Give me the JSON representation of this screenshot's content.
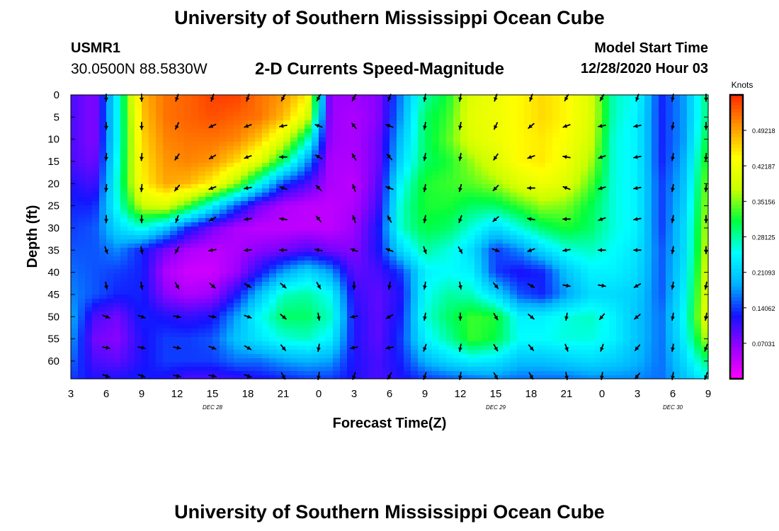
{
  "page": {
    "title": "University of Southern Mississippi Ocean Cube",
    "footer_title": "University of Southern Mississippi Ocean Cube",
    "station_id": "USMR1",
    "station_coords": "30.0500N 88.5830W",
    "model_label": "Model Start Time",
    "model_time": "12/28/2020 Hour 03"
  },
  "chart_data": {
    "type": "heatmap",
    "title": "2-D Currents Speed-Magnitude",
    "xlabel": "Forecast Time(Z)",
    "ylabel": "Depth (ft)",
    "x_tick_labels": [
      "3",
      "6",
      "9",
      "12",
      "15",
      "18",
      "21",
      "0",
      "3",
      "6",
      "9",
      "12",
      "15",
      "18",
      "21",
      "0",
      "3",
      "6",
      "9"
    ],
    "x_range_hours": [
      0,
      54
    ],
    "date_labels": [
      {
        "text": "DEC 28",
        "at_hour": 12
      },
      {
        "text": "DEC 29",
        "at_hour": 36
      },
      {
        "text": "DEC 30",
        "at_hour": 51
      }
    ],
    "y_ticks": [
      0,
      5,
      10,
      15,
      20,
      25,
      30,
      35,
      40,
      45,
      50,
      55,
      60
    ],
    "ylim": [
      0,
      64
    ],
    "y_inverted": true,
    "colorbar": {
      "unit": "Knots",
      "tick_labels": [
        "0.49218",
        "0.42187",
        "0.35156",
        "0.28125",
        "0.21093",
        "0.14062",
        "0.07031"
      ],
      "tick_values": [
        0.49218,
        0.42187,
        0.35156,
        0.28125,
        0.21093,
        0.14062,
        0.07031
      ],
      "range": [
        0,
        0.5625
      ],
      "colors": [
        "#ff00ff",
        "#9900ff",
        "#1414ff",
        "#00b4ff",
        "#00ffff",
        "#00ff3c",
        "#c8ff00",
        "#ffff00",
        "#ff9600",
        "#ff2800"
      ]
    },
    "speed_grid": {
      "times": [
        0,
        2,
        4,
        6,
        8,
        10,
        12,
        14,
        16,
        18,
        20,
        22,
        24,
        26,
        28,
        30,
        32,
        34,
        36,
        38,
        40,
        42,
        44,
        46,
        48,
        50,
        52,
        54
      ],
      "depths": [
        0,
        5,
        10,
        15,
        20,
        25,
        30,
        35,
        40,
        45,
        50,
        55,
        60,
        64
      ],
      "values": [
        [
          0.1,
          0.07,
          0.25,
          0.48,
          0.52,
          0.53,
          0.55,
          0.55,
          0.52,
          0.5,
          0.45,
          0.06,
          0.06,
          0.07,
          0.17,
          0.28,
          0.32,
          0.4,
          0.42,
          0.44,
          0.46,
          0.44,
          0.4,
          0.27,
          0.25,
          0.13,
          0.18,
          0.3
        ],
        [
          0.1,
          0.07,
          0.25,
          0.47,
          0.52,
          0.53,
          0.54,
          0.53,
          0.52,
          0.48,
          0.4,
          0.06,
          0.05,
          0.07,
          0.18,
          0.3,
          0.33,
          0.41,
          0.42,
          0.44,
          0.46,
          0.44,
          0.4,
          0.27,
          0.24,
          0.13,
          0.18,
          0.3
        ],
        [
          0.1,
          0.07,
          0.25,
          0.46,
          0.51,
          0.52,
          0.52,
          0.51,
          0.47,
          0.4,
          0.28,
          0.06,
          0.05,
          0.08,
          0.2,
          0.3,
          0.34,
          0.4,
          0.42,
          0.44,
          0.45,
          0.43,
          0.39,
          0.26,
          0.24,
          0.13,
          0.18,
          0.32
        ],
        [
          0.1,
          0.08,
          0.26,
          0.45,
          0.5,
          0.51,
          0.5,
          0.46,
          0.4,
          0.3,
          0.18,
          0.05,
          0.05,
          0.08,
          0.22,
          0.3,
          0.32,
          0.36,
          0.4,
          0.44,
          0.45,
          0.42,
          0.37,
          0.26,
          0.24,
          0.13,
          0.19,
          0.34
        ],
        [
          0.12,
          0.1,
          0.27,
          0.44,
          0.49,
          0.48,
          0.44,
          0.36,
          0.25,
          0.14,
          0.1,
          0.05,
          0.04,
          0.09,
          0.25,
          0.32,
          0.33,
          0.34,
          0.36,
          0.4,
          0.42,
          0.4,
          0.34,
          0.26,
          0.24,
          0.14,
          0.2,
          0.36
        ],
        [
          0.13,
          0.13,
          0.26,
          0.38,
          0.4,
          0.33,
          0.24,
          0.15,
          0.08,
          0.05,
          0.04,
          0.04,
          0.05,
          0.1,
          0.27,
          0.32,
          0.32,
          0.3,
          0.3,
          0.33,
          0.36,
          0.35,
          0.31,
          0.26,
          0.24,
          0.14,
          0.21,
          0.37
        ],
        [
          0.14,
          0.15,
          0.22,
          0.26,
          0.21,
          0.13,
          0.08,
          0.05,
          0.04,
          0.04,
          0.04,
          0.04,
          0.06,
          0.12,
          0.27,
          0.31,
          0.3,
          0.26,
          0.22,
          0.26,
          0.3,
          0.32,
          0.3,
          0.26,
          0.24,
          0.14,
          0.22,
          0.38
        ],
        [
          0.15,
          0.15,
          0.17,
          0.13,
          0.08,
          0.05,
          0.04,
          0.05,
          0.07,
          0.08,
          0.1,
          0.08,
          0.07,
          0.12,
          0.22,
          0.28,
          0.26,
          0.22,
          0.14,
          0.17,
          0.22,
          0.26,
          0.27,
          0.25,
          0.23,
          0.15,
          0.22,
          0.39
        ],
        [
          0.16,
          0.15,
          0.14,
          0.13,
          0.05,
          0.03,
          0.03,
          0.06,
          0.12,
          0.18,
          0.22,
          0.18,
          0.09,
          0.1,
          0.14,
          0.24,
          0.25,
          0.24,
          0.14,
          0.12,
          0.13,
          0.2,
          0.24,
          0.24,
          0.22,
          0.15,
          0.23,
          0.4
        ],
        [
          0.17,
          0.15,
          0.13,
          0.13,
          0.07,
          0.05,
          0.06,
          0.12,
          0.2,
          0.27,
          0.28,
          0.25,
          0.11,
          0.09,
          0.12,
          0.25,
          0.28,
          0.27,
          0.22,
          0.15,
          0.13,
          0.18,
          0.22,
          0.22,
          0.21,
          0.15,
          0.24,
          0.41
        ],
        [
          0.19,
          0.1,
          0.08,
          0.13,
          0.12,
          0.11,
          0.12,
          0.18,
          0.25,
          0.3,
          0.3,
          0.27,
          0.12,
          0.09,
          0.13,
          0.26,
          0.3,
          0.33,
          0.32,
          0.24,
          0.24,
          0.26,
          0.27,
          0.24,
          0.2,
          0.16,
          0.25,
          0.42
        ],
        [
          0.18,
          0.08,
          0.07,
          0.12,
          0.14,
          0.14,
          0.15,
          0.2,
          0.23,
          0.26,
          0.27,
          0.24,
          0.12,
          0.09,
          0.14,
          0.24,
          0.28,
          0.33,
          0.31,
          0.25,
          0.25,
          0.26,
          0.26,
          0.24,
          0.2,
          0.16,
          0.24,
          0.38
        ],
        [
          0.16,
          0.1,
          0.09,
          0.12,
          0.14,
          0.14,
          0.14,
          0.16,
          0.16,
          0.18,
          0.19,
          0.18,
          0.12,
          0.1,
          0.13,
          0.19,
          0.22,
          0.24,
          0.23,
          0.2,
          0.2,
          0.21,
          0.22,
          0.21,
          0.19,
          0.16,
          0.22,
          0.3
        ],
        [
          0.14,
          0.12,
          0.12,
          0.13,
          0.12,
          0.1,
          0.1,
          0.11,
          0.12,
          0.13,
          0.14,
          0.14,
          0.12,
          0.1,
          0.12,
          0.14,
          0.15,
          0.16,
          0.17,
          0.16,
          0.16,
          0.16,
          0.17,
          0.17,
          0.17,
          0.16,
          0.2,
          0.25
        ]
      ]
    },
    "vectors": {
      "times": [
        3,
        6,
        9,
        12,
        15,
        18,
        21,
        24,
        27,
        30,
        33,
        36,
        39,
        42,
        45,
        48,
        51,
        54
      ],
      "depths": [
        0,
        7,
        14,
        21,
        28,
        35,
        43,
        50,
        57,
        64
      ],
      "angles_deg": [
        [
          90,
          90,
          110,
          110,
          110,
          120,
          120,
          120,
          110,
          100,
          100,
          110,
          110,
          120,
          120,
          110,
          100,
          90
        ],
        [
          90,
          90,
          115,
          155,
          160,
          170,
          200,
          230,
          200,
          100,
          100,
          115,
          140,
          160,
          170,
          170,
          100,
          90
        ],
        [
          95,
          95,
          125,
          150,
          160,
          180,
          210,
          240,
          230,
          100,
          100,
          125,
          160,
          190,
          160,
          170,
          100,
          95
        ],
        [
          95,
          95,
          130,
          160,
          170,
          200,
          225,
          250,
          200,
          100,
          105,
          135,
          180,
          200,
          165,
          170,
          100,
          95
        ],
        [
          90,
          90,
          110,
          150,
          170,
          190,
          230,
          250,
          240,
          100,
          110,
          140,
          190,
          180,
          160,
          170,
          100,
          90
        ],
        [
          70,
          80,
          120,
          170,
          175,
          180,
          190,
          200,
          200,
          70,
          60,
          20,
          160,
          170,
          180,
          180,
          100,
          90
        ],
        [
          80,
          80,
          60,
          40,
          30,
          40,
          60,
          90,
          100,
          100,
          80,
          50,
          30,
          10,
          10,
          150,
          100,
          100
        ],
        [
          20,
          20,
          10,
          10,
          20,
          40,
          80,
          170,
          150,
          100,
          90,
          60,
          40,
          100,
          130,
          140,
          100,
          100
        ],
        [
          10,
          10,
          10,
          20,
          30,
          50,
          100,
          170,
          170,
          110,
          100,
          60,
          50,
          70,
          110,
          130,
          100,
          110
        ],
        [
          20,
          20,
          10,
          10,
          20,
          60,
          100,
          110,
          120,
          110,
          100,
          60,
          60,
          80,
          100,
          130,
          100,
          110
        ]
      ]
    }
  }
}
